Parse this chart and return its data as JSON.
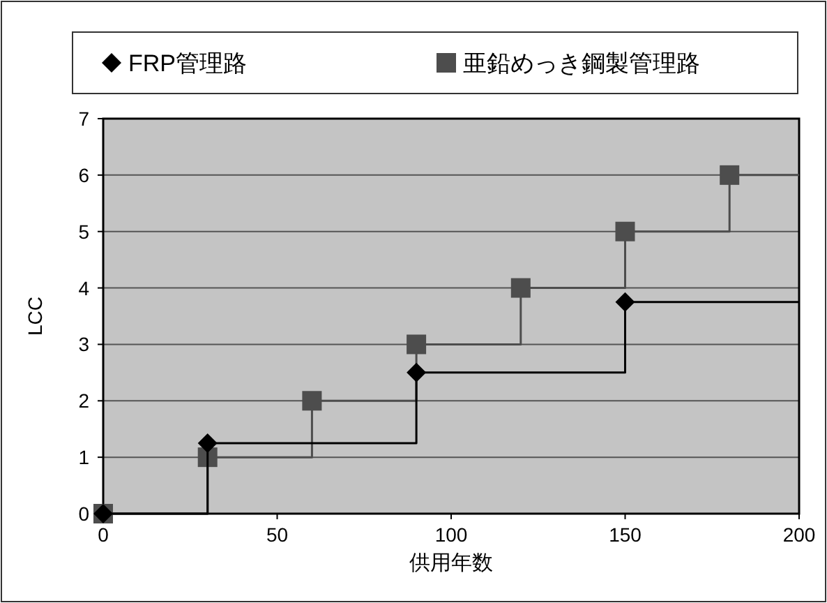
{
  "chart_data": {
    "type": "step",
    "xlabel": "供用年数",
    "ylabel": "LCC",
    "xlim": [
      0,
      200
    ],
    "xticks": [
      0,
      50,
      100,
      150,
      200
    ],
    "ylim": [
      0,
      7
    ],
    "yticks": [
      0,
      1,
      2,
      3,
      4,
      5,
      6,
      7
    ],
    "grid": "y",
    "legend": "top",
    "series": [
      {
        "name": "FRP管理路",
        "color": "#000000",
        "marker": "diamond",
        "x": [
          0,
          30,
          90,
          150
        ],
        "values": [
          0,
          1.25,
          2.5,
          3.75
        ]
      },
      {
        "name": "亜鉛めっき鋼製管理路",
        "color": "#4d4d4d",
        "marker": "square",
        "x": [
          0,
          30,
          60,
          90,
          120,
          150,
          180
        ],
        "values": [
          0,
          1,
          2,
          3,
          4,
          5,
          6
        ]
      },
      {
        "type": "line",
        "color": "#000000",
        "marker": "none",
        "x": [
          150,
          200
        ],
        "values": [
          3.75,
          3.75
        ]
      },
      {
        "type": "line",
        "color": "#4d4d4d",
        "marker": "none",
        "x": [
          180,
          200
        ],
        "values": [
          6,
          6
        ]
      }
    ]
  }
}
